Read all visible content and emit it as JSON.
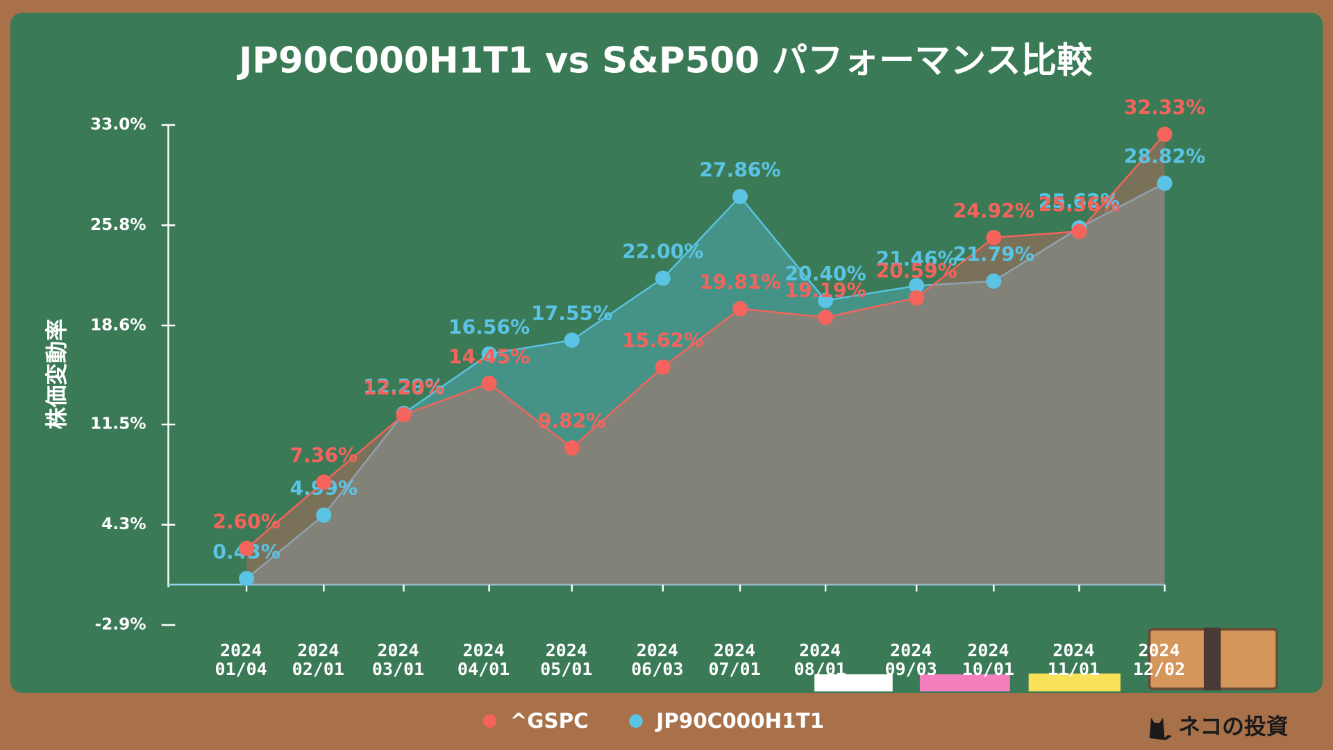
{
  "chart_data": {
    "type": "line",
    "title": "JP90C000H1T1 vs S&P500 パフォーマンス比較",
    "y_label": "株価変動率",
    "categories": [
      "2024\n01/04",
      "2024\n02/01",
      "2024\n03/01",
      "2024\n04/01",
      "2024\n05/01",
      "2024\n06/03",
      "2024\n07/01",
      "2024\n08/01",
      "2024\n09/03",
      "2024\n10/01",
      "2024\n11/01",
      "2024\n12/02"
    ],
    "series": [
      {
        "name": "^GSPC",
        "color": "#f4645c",
        "values": [
          2.6,
          7.36,
          12.2,
          14.45,
          9.82,
          15.62,
          19.81,
          19.19,
          20.59,
          24.92,
          25.36,
          32.33
        ],
        "value_labels": [
          "2.60%",
          "7.36%",
          "12.20%",
          "14.45%",
          "9.82%",
          "15.62%",
          "19.81%",
          "19.19%",
          "20.59%",
          "24.92%",
          "25.36%",
          "32.33%"
        ]
      },
      {
        "name": "JP90C000H1T1",
        "color": "#5bc3e3",
        "values": [
          0.43,
          4.99,
          12.29,
          16.56,
          17.55,
          22.0,
          27.86,
          20.4,
          21.46,
          21.79,
          25.62,
          28.82
        ],
        "value_labels": [
          "0.43%",
          "4.99%",
          "12.29%",
          "16.56%",
          "17.55%",
          "22.00%",
          "27.86%",
          "20.40%",
          "21.46%",
          "21.79%",
          "25.62%",
          "28.82%"
        ]
      }
    ],
    "ylim": [
      -2.9,
      33.0
    ],
    "yticks": [
      {
        "value": -2.9,
        "label": "-2.9%"
      },
      {
        "value": 4.3,
        "label": "4.3%"
      },
      {
        "value": 11.5,
        "label": "11.5%"
      },
      {
        "value": 18.6,
        "label": "18.6%"
      },
      {
        "value": 25.8,
        "label": "25.8%"
      },
      {
        "value": 33.0,
        "label": "33.0%"
      }
    ],
    "area": true,
    "legend": "bottom"
  },
  "brand": "ネコの投資"
}
